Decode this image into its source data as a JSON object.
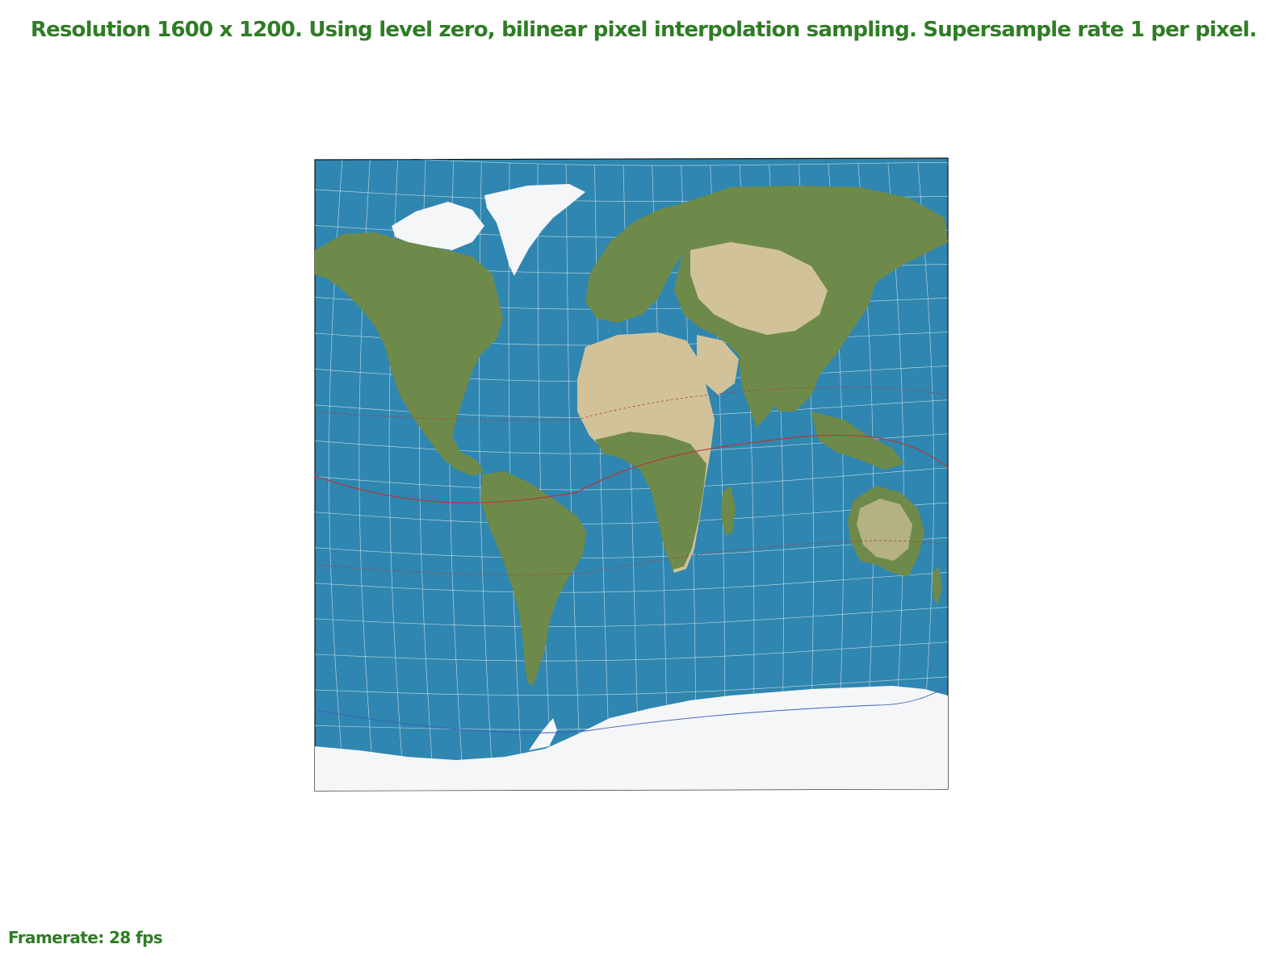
{
  "status": {
    "text": "Resolution 1600 x 1200. Using level zero, bilinear pixel interpolation sampling. Supersample rate 1 per pixel.",
    "color": "#2e7d24"
  },
  "framerate": {
    "text": "Framerate: 28 fps"
  },
  "texture": {
    "ocean_color": "#2f86b0",
    "land_color": "#6e8a4a",
    "desert_color": "#d2c29a",
    "ice_color": "#f4f6f8",
    "graticule_color": "#dfe9ef",
    "equator_color": "#b03a3a",
    "polar_circle_color": "#3a5fc0"
  }
}
